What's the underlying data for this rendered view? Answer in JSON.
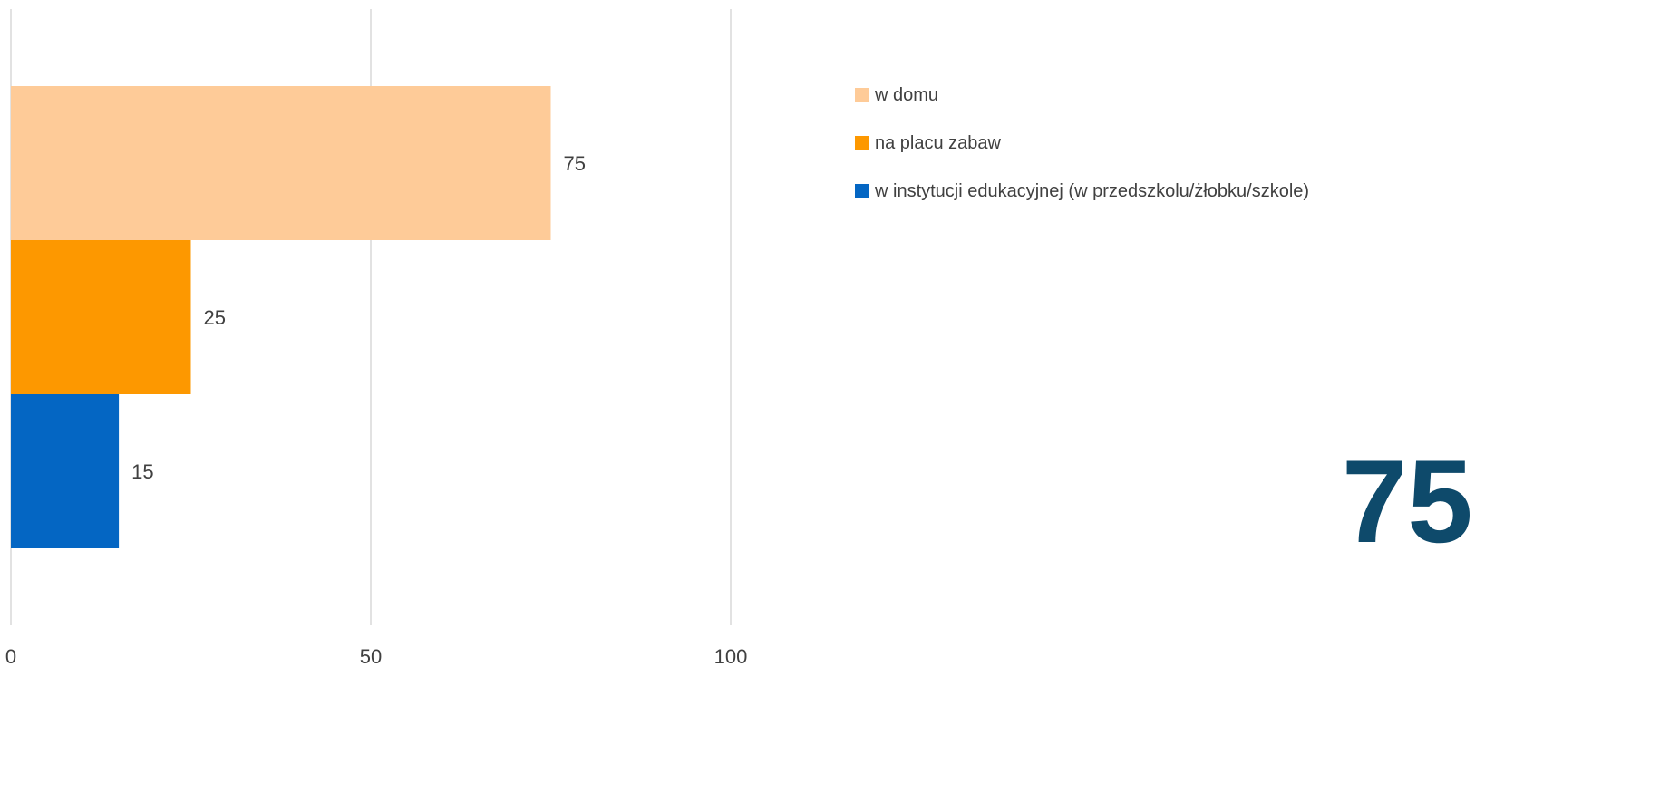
{
  "colors": {
    "gridline": "#d9d9d9",
    "big_number": "#0e4a6b"
  },
  "big_number": "75",
  "chart_data": {
    "type": "bar",
    "orientation": "horizontal",
    "title": "",
    "xlabel": "",
    "ylabel": "",
    "xlim": [
      0,
      100
    ],
    "x_ticks": [
      0,
      50,
      100
    ],
    "grid": true,
    "legend_position": "right",
    "series": [
      {
        "name": "w domu",
        "value": 75,
        "color": "#fecb98"
      },
      {
        "name": "na placu zabaw",
        "value": 25,
        "color": "#fd9800"
      },
      {
        "name": "w instytucji edukacyjnej (w przedszkolu/żłobku/szkole)",
        "value": 15,
        "color": "#0466c3"
      }
    ]
  }
}
